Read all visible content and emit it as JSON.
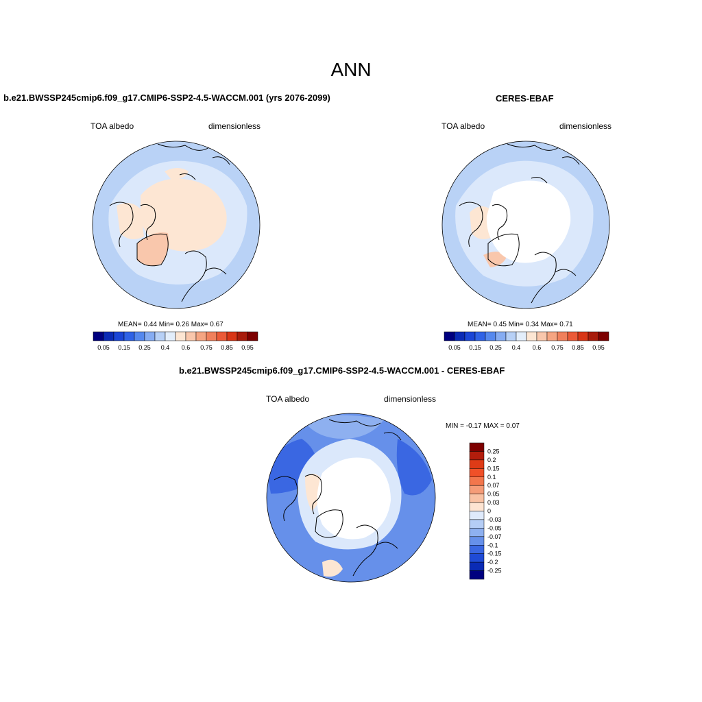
{
  "title": "ANN",
  "panels": [
    {
      "title": "b.e21.BWSSP245cmip6.f09_g17.CMIP6-SSP2-4.5-WACCM.001 (yrs 2076-2099)",
      "variable_label": "TOA albedo",
      "units_label": "dimensionless",
      "stats": {
        "mean_label": "MEAN=",
        "mean": "0.44",
        "min_label": "Min=",
        "min": "0.26",
        "max_label": "Max=",
        "max": "0.67"
      }
    },
    {
      "title": "CERES-EBAF",
      "variable_label": "TOA albedo",
      "units_label": "dimensionless",
      "stats": {
        "mean_label": "MEAN=",
        "mean": "0.45",
        "min_label": "Min=",
        "min": "0.34",
        "max_label": "Max=",
        "max": "0.71"
      }
    },
    {
      "title": "b.e21.BWSSP245cmip6.f09_g17.CMIP6-SSP2-4.5-WACCM.001 - CERES-EBAF",
      "variable_label": "TOA albedo",
      "units_label": "dimensionless",
      "stats": {
        "min_label": "MIN =",
        "min": "-0.17",
        "max_label": "MAX =",
        "max": "0.07"
      }
    }
  ],
  "colorbar_abs": {
    "colors": [
      "#00007f",
      "#0a2ab5",
      "#1a45d6",
      "#2f62e6",
      "#5588ee",
      "#86acf2",
      "#b7d0f6",
      "#e3eefb",
      "#fde6d3",
      "#f9c7ac",
      "#f5a582",
      "#f0805c",
      "#eb5a38",
      "#d83617",
      "#a81c0c",
      "#7d0000"
    ],
    "tick_labels": [
      "0.05",
      "0.15",
      "0.25",
      "0.4",
      "0.6",
      "0.75",
      "0.85",
      "0.95"
    ]
  },
  "colorbar_diff": {
    "colors": [
      "#7d0000",
      "#b31d0c",
      "#de3b17",
      "#f05028",
      "#f2764c",
      "#f59c78",
      "#f9c2a4",
      "#fde4d2",
      "#dfeafb",
      "#b5cdf5",
      "#8eb0f0",
      "#6690ea",
      "#3a67e2",
      "#1f4bd6",
      "#0a2bb5",
      "#00007f"
    ],
    "tick_labels": [
      "0.25",
      "0.2",
      "0.15",
      "0.1",
      "0.07",
      "0.05",
      "0.03",
      "0",
      "-0.03",
      "-0.05",
      "-0.07",
      "-0.1",
      "-0.15",
      "-0.2",
      "-0.25"
    ]
  },
  "map_colors": {
    "ocean_low": "#b9d2f6",
    "ocean_mid": "#dbe8fb",
    "land_high": "#fde6d3",
    "land_higher": "#f9c7ac",
    "diff_strong": "#3a67e2",
    "diff_mid": "#6690ea",
    "diff_light": "#8eb0f0",
    "missing": "#ffffff",
    "coast": "#000000"
  }
}
